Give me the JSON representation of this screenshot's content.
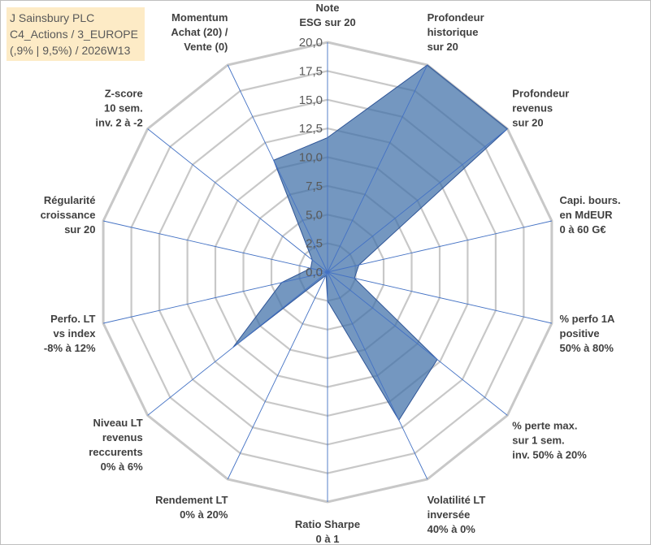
{
  "header": {
    "line1": "J Sainsbury PLC",
    "line2": "C4_Actions / 3_EUROPE",
    "line3": "(,9% | 9,5%) / 2026W13"
  },
  "colors": {
    "fill": "#3F6FA8",
    "spoke": "#4472C4",
    "grid": "#c8c8c8",
    "title_bg": "#fdebc6"
  },
  "chart_data": {
    "type": "radar",
    "title": "J Sainsbury PLC",
    "r_range": [
      0,
      20
    ],
    "r_step": 2.5,
    "ticks": [
      "0,0",
      "2,5",
      "5,0",
      "7,5",
      "10,0",
      "12,5",
      "15,0",
      "17,5",
      "20,0"
    ],
    "axes": [
      {
        "label": [
          "Note",
          "ESG sur 20"
        ],
        "value": 11.7
      },
      {
        "label": [
          "Profondeur",
          "historique",
          "sur 20"
        ],
        "value": 20
      },
      {
        "label": [
          "Profondeur",
          "revenus",
          "sur 20"
        ],
        "value": 20
      },
      {
        "label": [
          "Capi. bours.",
          "en MdEUR",
          "0 à 60 G€"
        ],
        "value": 2.8
      },
      {
        "label": [
          "% perfo 1A",
          "positive",
          "50% à 80%"
        ],
        "value": 2.4
      },
      {
        "label": [
          "% perte max.",
          "sur 1 sem.",
          "inv. 50% à 20%"
        ],
        "value": 12.2
      },
      {
        "label": [
          "Volatilité LT",
          "inversée",
          "40% à 0%"
        ],
        "value": 14.3
      },
      {
        "label": [
          "Ratio Sharpe",
          "0 à 1"
        ],
        "value": 2.5
      },
      {
        "label": [
          "Rendement LT",
          "0% à 20%"
        ],
        "value": 0.3
      },
      {
        "label": [
          "Niveau LT",
          "revenus",
          "reccurents",
          "0% à 6%"
        ],
        "value": 10.5
      },
      {
        "label": [
          "Perfo. LT",
          "vs index",
          "-8% à 12%"
        ],
        "value": 4.1
      },
      {
        "label": [
          "Régularité",
          "croissance",
          "sur 20"
        ],
        "value": 1.5
      },
      {
        "label": [
          "Z-score",
          "10 sem.",
          "inv. 2 à -2"
        ],
        "value": 1.7
      },
      {
        "label": [
          "Momentum",
          "Achat (20) /",
          "Vente (0)"
        ],
        "value": 10.8
      }
    ]
  }
}
